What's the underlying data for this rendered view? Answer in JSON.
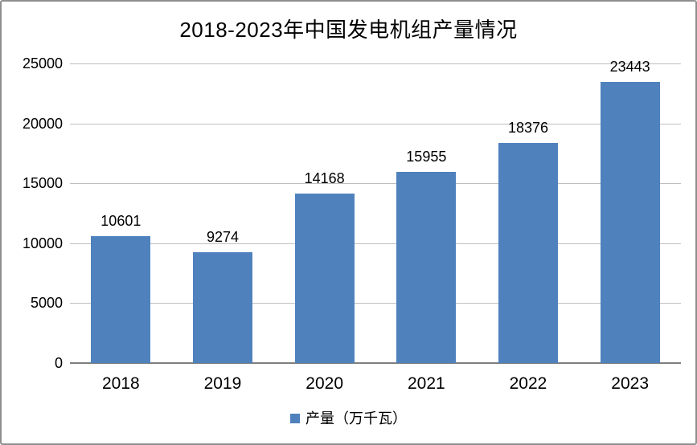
{
  "frame": {
    "background": "#ffffff",
    "border_color": "#8f8f8f"
  },
  "chart_data": {
    "type": "bar",
    "title": "2018-2023年中国发电机组产量情况",
    "categories": [
      "2018",
      "2019",
      "2020",
      "2021",
      "2022",
      "2023"
    ],
    "series": [
      {
        "name": "产量（万千瓦）",
        "values": [
          10601,
          9274,
          14168,
          15955,
          18376,
          23443
        ]
      }
    ],
    "xlabel": "",
    "ylabel": "",
    "ylim": [
      0,
      25000
    ],
    "yticks": [
      0,
      5000,
      10000,
      15000,
      20000,
      25000
    ],
    "grid": "horizontal-gridlines",
    "value_labels": "above-bars",
    "legend_position": "bottom-center",
    "colors": {
      "bar": "#4f81bd",
      "gridline": "#bfbfbf",
      "axis": "#7f7f7f",
      "text": "#000000"
    }
  },
  "legend": {
    "marker_icon": "square-icon",
    "label": "产量（万千瓦）"
  }
}
